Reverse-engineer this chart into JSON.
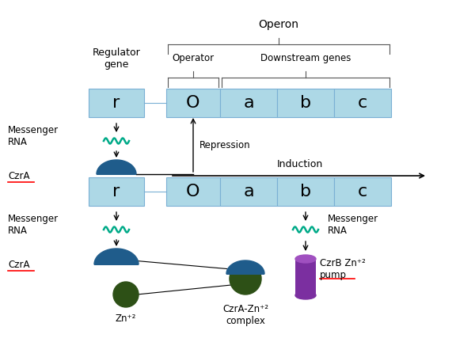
{
  "bg_color": "#ffffff",
  "box_color": "#add8e6",
  "box_edge_color": "#7ab0d4",
  "czra_color": "#1f5c8b",
  "zn_color": "#2d5016",
  "pump_color": "#7b2fa0",
  "pump_top_color": "#a050c0",
  "mrna_color": "#00aa88",
  "line_color": "#7ab0d4",
  "brace_color": "#555555",
  "operon_label": "Operon",
  "operator_label": "Operator",
  "downstream_label": "Downstream genes",
  "regulator_label": "Regulator\ngene",
  "messenger_rna_label": "Messenger\nRNA",
  "czra_label": "CzrA",
  "repression_label": "Repression",
  "induction_label": "Induction",
  "zn_label": "Zn⁺²",
  "czra_zn_label": "CzrA-Zn⁺²\ncomplex",
  "czrb_label": "CzrB Zn⁺²\npump",
  "messenger_rna_label2": "Messenger\nRNA"
}
